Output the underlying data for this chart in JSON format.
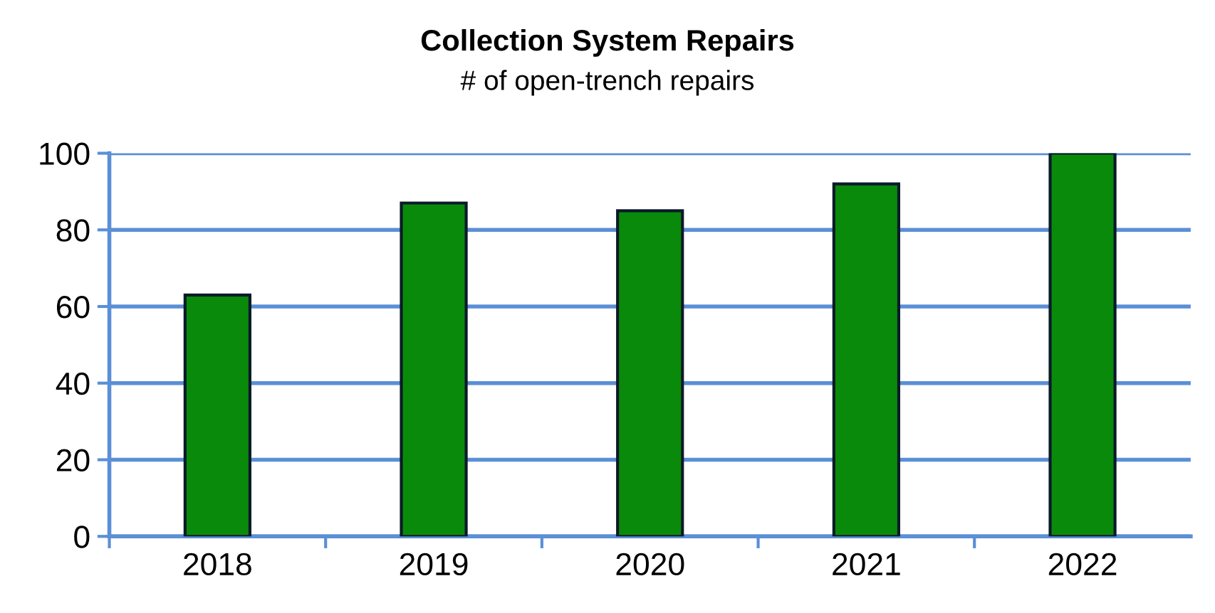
{
  "chart_data": {
    "type": "bar",
    "title": "Collection System Repairs",
    "subtitle": "# of open-trench repairs",
    "categories": [
      "2018",
      "2019",
      "2020",
      "2021",
      "2022"
    ],
    "values": [
      63,
      87,
      85,
      92,
      100
    ],
    "color": "#0a8a0a",
    "ylim": [
      0,
      100
    ],
    "yticks": [
      0,
      20,
      40,
      60,
      80,
      100
    ],
    "grid": "y"
  }
}
